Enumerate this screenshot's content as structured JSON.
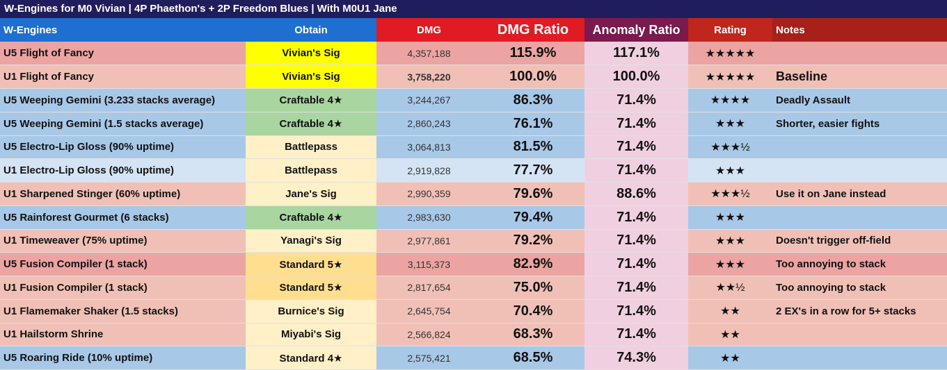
{
  "title": "W-Engines for M0 Vivian | 4P Phaethon's + 2P Freedom Blues | With M0U1 Jane",
  "headers": {
    "wengine": "W-Engines",
    "obtain": "Obtain",
    "dmg": "DMG",
    "ratio": "DMG Ratio",
    "anomaly": "Anomaly Ratio",
    "rating": "Rating",
    "notes": "Notes"
  },
  "colors": {
    "red": "#eba4a2",
    "lightred": "#f0c0b6",
    "blue": "#a8c8e8",
    "lightblue": "#d4e4f4",
    "yellow": "#ffff00",
    "green": "#a8d5a0",
    "cream": "#fff0c8",
    "gold": "#ffde90",
    "anomaly": "#f0d0e0"
  },
  "rows": [
    {
      "name": "U5 Flight of Fancy",
      "obtain": "Vivian's Sig",
      "dmg": "4,357,188",
      "ratio": "115.9%",
      "anomaly": "117.1%",
      "rating": "★★★★★",
      "notes": "",
      "bg": "red",
      "obg": "yellow"
    },
    {
      "name": "U1 Flight of Fancy",
      "obtain": "Vivian's Sig",
      "dmg": "3,758,220",
      "ratio": "100.0%",
      "anomaly": "100.0%",
      "rating": "★★★★★",
      "notes": "Baseline",
      "bg": "lightred",
      "obg": "yellow",
      "baseline": true
    },
    {
      "name": "U5 Weeping Gemini (3.233 stacks average)",
      "obtain": "Craftable 4★",
      "dmg": "3,244,267",
      "ratio": "86.3%",
      "anomaly": "71.4%",
      "rating": "★★★★",
      "notes": "Deadly Assault",
      "bg": "blue",
      "obg": "green"
    },
    {
      "name": "U5 Weeping Gemini (1.5 stacks average)",
      "obtain": "Craftable 4★",
      "dmg": "2,860,243",
      "ratio": "76.1%",
      "anomaly": "71.4%",
      "rating": "★★★",
      "notes": "Shorter, easier fights",
      "bg": "blue",
      "obg": "green"
    },
    {
      "name": "U5 Electro-Lip Gloss (90% uptime)",
      "obtain": "Battlepass",
      "dmg": "3,064,813",
      "ratio": "81.5%",
      "anomaly": "71.4%",
      "rating": "★★★½",
      "notes": "",
      "bg": "blue",
      "obg": "cream"
    },
    {
      "name": "U1 Electro-Lip Gloss (90% uptime)",
      "obtain": "Battlepass",
      "dmg": "2,919,828",
      "ratio": "77.7%",
      "anomaly": "71.4%",
      "rating": "★★★",
      "notes": "",
      "bg": "lightblue",
      "obg": "cream"
    },
    {
      "name": "U1 Sharpened Stinger (60% uptime)",
      "obtain": "Jane's Sig",
      "dmg": "2,990,359",
      "ratio": "79.6%",
      "anomaly": "88.6%",
      "rating": "★★★½",
      "notes": "Use it on Jane instead",
      "bg": "lightred",
      "obg": "cream"
    },
    {
      "name": "U5 Rainforest Gourmet (6 stacks)",
      "obtain": "Craftable 4★",
      "dmg": "2,983,630",
      "ratio": "79.4%",
      "anomaly": "71.4%",
      "rating": "★★★",
      "notes": "",
      "bg": "blue",
      "obg": "green"
    },
    {
      "name": "U1 Timeweaver (75% uptime)",
      "obtain": "Yanagi's Sig",
      "dmg": "2,977,861",
      "ratio": "79.2%",
      "anomaly": "71.4%",
      "rating": "★★★",
      "notes": "Doesn't trigger off-field",
      "bg": "lightred",
      "obg": "cream"
    },
    {
      "name": "U5 Fusion Compiler (1 stack)",
      "obtain": "Standard 5★",
      "dmg": "3,115,373",
      "ratio": "82.9%",
      "anomaly": "71.4%",
      "rating": "★★★",
      "notes": "Too annoying to stack",
      "bg": "red",
      "obg": "gold"
    },
    {
      "name": "U1 Fusion Compiler (1 stack)",
      "obtain": "Standard 5★",
      "dmg": "2,817,654",
      "ratio": "75.0%",
      "anomaly": "71.4%",
      "rating": "★★½",
      "notes": "Too annoying to stack",
      "bg": "lightred",
      "obg": "gold"
    },
    {
      "name": "U1 Flamemaker Shaker (1.5 stacks)",
      "obtain": "Burnice's Sig",
      "dmg": "2,645,754",
      "ratio": "70.4%",
      "anomaly": "71.4%",
      "rating": "★★",
      "notes": "2 EX's in a row for 5+ stacks",
      "bg": "lightred",
      "obg": "cream"
    },
    {
      "name": "U1 Hailstorm Shrine",
      "obtain": "Miyabi's Sig",
      "dmg": "2,566,824",
      "ratio": "68.3%",
      "anomaly": "71.4%",
      "rating": "★★",
      "notes": "",
      "bg": "lightred",
      "obg": "cream"
    },
    {
      "name": "U5 Roaring Ride (10% uptime)",
      "obtain": "Standard 4★",
      "dmg": "2,575,421",
      "ratio": "68.5%",
      "anomaly": "74.3%",
      "rating": "★★",
      "notes": "",
      "bg": "blue",
      "obg": "cream"
    }
  ]
}
